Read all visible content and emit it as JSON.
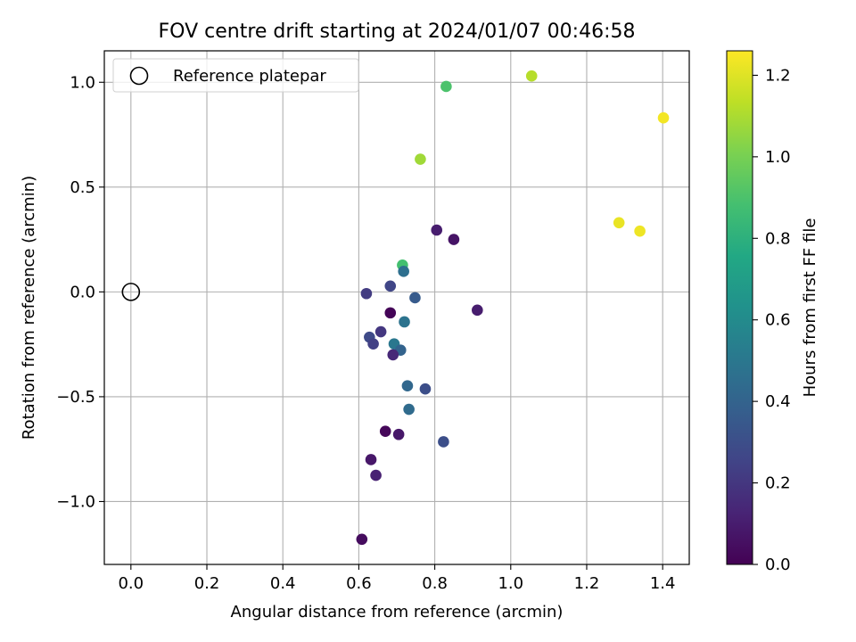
{
  "chart_data": {
    "type": "scatter",
    "title": "FOV centre drift starting at 2024/01/07 00:46:58",
    "xlabel": "Angular distance from reference (arcmin)",
    "ylabel": "Rotation from reference (arcmin)",
    "xlim": [
      -0.07,
      1.47
    ],
    "ylim": [
      -1.3,
      1.15
    ],
    "xticks": [
      0.0,
      0.2,
      0.4,
      0.6,
      0.8,
      1.0,
      1.2,
      1.4
    ],
    "xtick_labels": [
      "0.0",
      "0.2",
      "0.4",
      "0.6",
      "0.8",
      "1.0",
      "1.2",
      "1.4"
    ],
    "yticks": [
      1.0,
      0.5,
      0.0,
      -0.5,
      -1.0
    ],
    "ytick_labels": [
      "1.0",
      "0.5",
      "0.0",
      "−0.5",
      "−1.0"
    ],
    "grid": true,
    "legend": {
      "placement": "top-left",
      "label": "Reference platepar"
    },
    "reference_point": {
      "x": 0.0,
      "y": 0.0
    },
    "colorbar": {
      "label": "Hours from first FF file",
      "range": [
        0.0,
        1.26
      ],
      "colormap": "viridis",
      "ticks": [
        0.0,
        0.2,
        0.4,
        0.6,
        0.8,
        1.0,
        1.2
      ],
      "tick_labels": [
        "0.0",
        "0.2",
        "0.4",
        "0.6",
        "0.8",
        "1.0",
        "1.2"
      ]
    },
    "points": [
      {
        "x": 1.055,
        "y": 1.03,
        "c": 1.12
      },
      {
        "x": 0.83,
        "y": 0.98,
        "c": 0.9
      },
      {
        "x": 1.402,
        "y": 0.83,
        "c": 1.24
      },
      {
        "x": 0.762,
        "y": 0.633,
        "c": 1.08
      },
      {
        "x": 1.285,
        "y": 0.33,
        "c": 1.22
      },
      {
        "x": 1.34,
        "y": 0.29,
        "c": 1.23
      },
      {
        "x": 0.805,
        "y": 0.295,
        "c": 0.1
      },
      {
        "x": 0.85,
        "y": 0.25,
        "c": 0.07
      },
      {
        "x": 0.715,
        "y": 0.128,
        "c": 0.88
      },
      {
        "x": 0.718,
        "y": 0.098,
        "c": 0.46
      },
      {
        "x": 0.683,
        "y": 0.028,
        "c": 0.26
      },
      {
        "x": 0.62,
        "y": -0.008,
        "c": 0.22
      },
      {
        "x": 0.748,
        "y": -0.028,
        "c": 0.36
      },
      {
        "x": 0.912,
        "y": -0.087,
        "c": 0.1
      },
      {
        "x": 0.683,
        "y": -0.1,
        "c": 0.01
      },
      {
        "x": 0.72,
        "y": -0.143,
        "c": 0.48
      },
      {
        "x": 0.658,
        "y": -0.19,
        "c": 0.2
      },
      {
        "x": 0.628,
        "y": -0.216,
        "c": 0.28
      },
      {
        "x": 0.638,
        "y": -0.248,
        "c": 0.24
      },
      {
        "x": 0.693,
        "y": -0.248,
        "c": 0.5
      },
      {
        "x": 0.71,
        "y": -0.278,
        "c": 0.4
      },
      {
        "x": 0.69,
        "y": -0.3,
        "c": 0.14
      },
      {
        "x": 0.728,
        "y": -0.448,
        "c": 0.42
      },
      {
        "x": 0.775,
        "y": -0.463,
        "c": 0.3
      },
      {
        "x": 0.732,
        "y": -0.56,
        "c": 0.44
      },
      {
        "x": 0.67,
        "y": -0.665,
        "c": 0.02
      },
      {
        "x": 0.705,
        "y": -0.68,
        "c": 0.08
      },
      {
        "x": 0.823,
        "y": -0.715,
        "c": 0.3
      },
      {
        "x": 0.632,
        "y": -0.8,
        "c": 0.08
      },
      {
        "x": 0.645,
        "y": -0.875,
        "c": 0.12
      },
      {
        "x": 0.608,
        "y": -1.18,
        "c": 0.04
      }
    ]
  }
}
